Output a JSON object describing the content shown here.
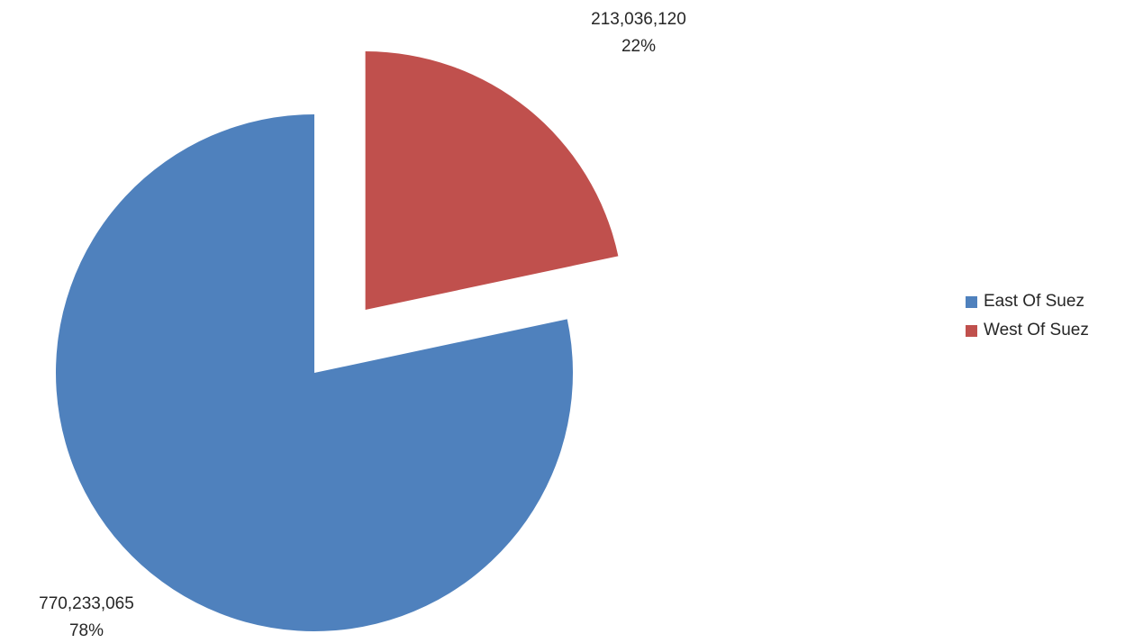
{
  "chart_data": {
    "type": "pie",
    "slices": [
      {
        "name": "East Of Suez",
        "value": 770233065,
        "value_label": "770,233,065",
        "percent_label": "78%",
        "color": "#4F81BD",
        "exploded": false
      },
      {
        "name": "West Of Suez",
        "value": 213036120,
        "value_label": "213,036,120",
        "percent_label": "22%",
        "color": "#C0504D",
        "exploded": true
      }
    ],
    "legend_position": "right"
  }
}
